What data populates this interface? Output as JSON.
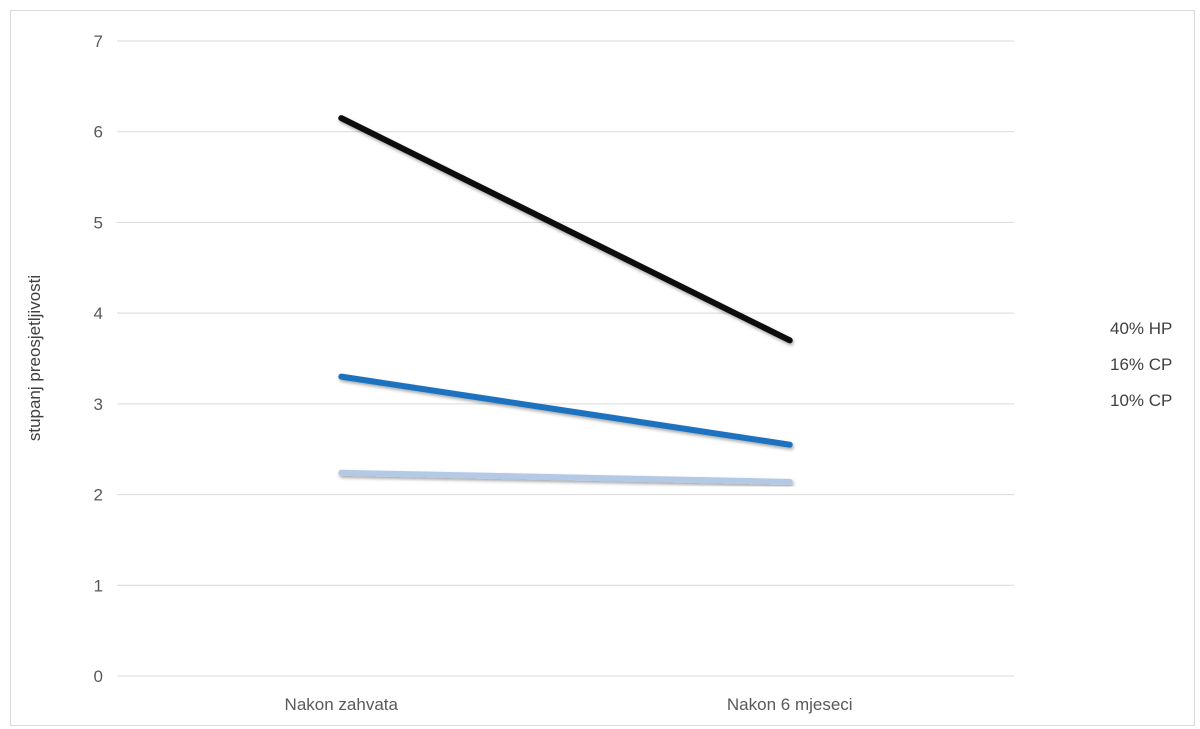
{
  "chart_data": {
    "type": "line",
    "title": "",
    "xlabel": "",
    "ylabel": "stupanj preosjetljivosti",
    "categories": [
      "Nakon zahvata",
      "Nakon 6 mjeseci"
    ],
    "ylim": [
      0,
      7
    ],
    "yticks": [
      0,
      1,
      2,
      3,
      4,
      5,
      6,
      7
    ],
    "grid": true,
    "legend_position": "right",
    "series": [
      {
        "name": "40% HP",
        "values": [
          6.15,
          3.7
        ],
        "color": "#111111"
      },
      {
        "name": "16% CP",
        "values": [
          3.3,
          2.55
        ],
        "color": "#1f72bf"
      },
      {
        "name": "10% CP",
        "values": [
          2.24,
          2.14
        ],
        "color": "#b4c9e6"
      }
    ]
  }
}
